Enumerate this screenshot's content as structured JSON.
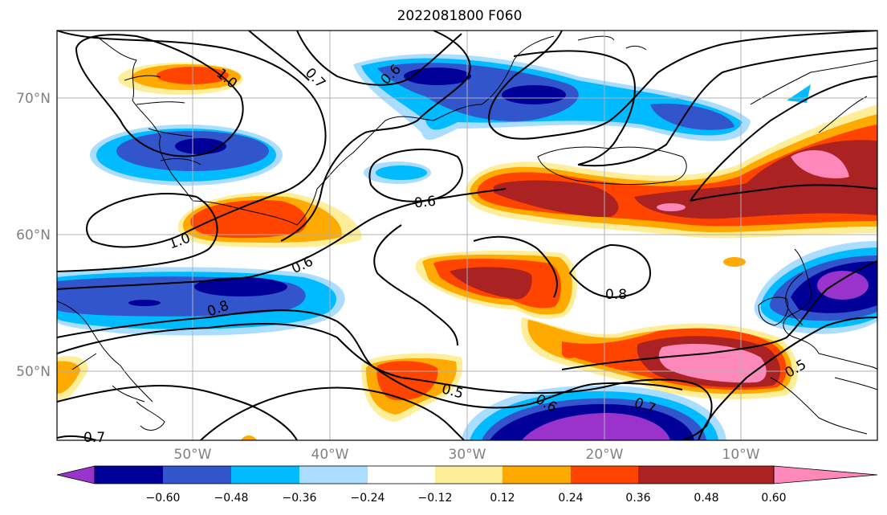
{
  "title": "2022081800 F060",
  "x_ticks": [
    "50°W",
    "40°W",
    "30°W",
    "20°W",
    "10°W"
  ],
  "y_ticks": [
    "70°N",
    "60°N",
    "50°N"
  ],
  "colorbar": {
    "ticks": [
      "−0.60",
      "−0.48",
      "−0.36",
      "−0.24",
      "−0.12",
      "0.12",
      "0.24",
      "0.36",
      "0.48",
      "0.60"
    ],
    "colors": [
      "#9933cc",
      "#000099",
      "#3355cc",
      "#00bbff",
      "#aaddff",
      "#ffffff",
      "#ffee99",
      "#ffaa00",
      "#ff4400",
      "#aa2222",
      "#ff88bb"
    ]
  },
  "contour_labels": [
    "1.0",
    "0.7",
    "0.6",
    "1.0",
    "0.6",
    "0.6",
    "0.8",
    "0.8",
    "0.5",
    "0.6",
    "0.7",
    "0.5",
    "0.7"
  ],
  "map": {
    "lon_range": [
      "60°W",
      "0°"
    ],
    "lat_range": [
      "45°N",
      "75°N"
    ],
    "gridlines": true
  }
}
